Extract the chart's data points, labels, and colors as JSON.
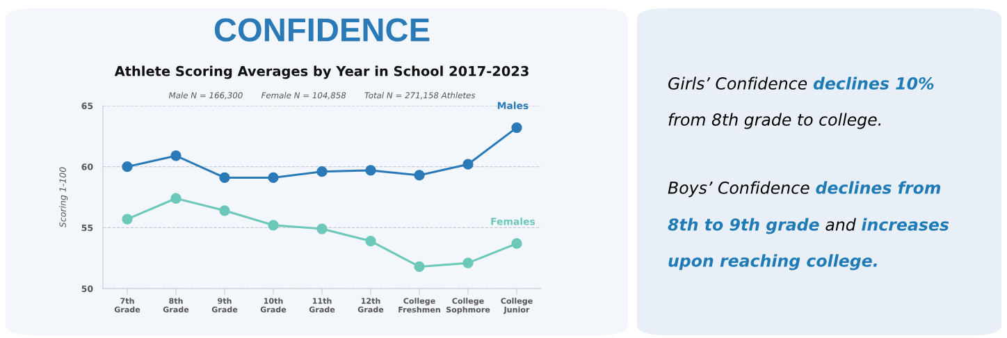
{
  "chart_data": {
    "type": "line",
    "title": "CONFIDENCE",
    "subtitle": "Athlete Scoring Averages by Year in School 2017-2023",
    "ylabel": "Scoring 1-100",
    "categories": [
      "7th\nGrade",
      "8th\nGrade",
      "9th\nGrade",
      "10th\nGrade",
      "11th\nGrade",
      "12th\nGrade",
      "College\nFreshmen",
      "College\nSophmore",
      "College\nJunior"
    ],
    "series": [
      {
        "name": "Males",
        "color": "#2a7ab8",
        "values": [
          60.0,
          60.9,
          59.1,
          59.1,
          59.6,
          59.7,
          59.3,
          60.2,
          63.2
        ]
      },
      {
        "name": "Females",
        "color": "#6cc8b8",
        "values": [
          55.7,
          57.4,
          56.4,
          55.2,
          54.9,
          53.9,
          51.8,
          52.1,
          53.7
        ]
      }
    ],
    "ylim": [
      50,
      65
    ],
    "yticks": [
      50,
      55,
      60,
      65
    ],
    "grid": "y",
    "marker": "circle",
    "line_style": "solid",
    "legend": false,
    "annotations": [
      "Male N = 166,300       Female N = 104,858       Total N = 271,158 Athletes",
      "Girls’ Confidence ",
      "declines 10%",
      "from 8th grade to college.",
      "Boys’ Confidence ",
      "declines from",
      "8th to 9th grade",
      " and ",
      "increases",
      "upon reaching college."
    ]
  }
}
